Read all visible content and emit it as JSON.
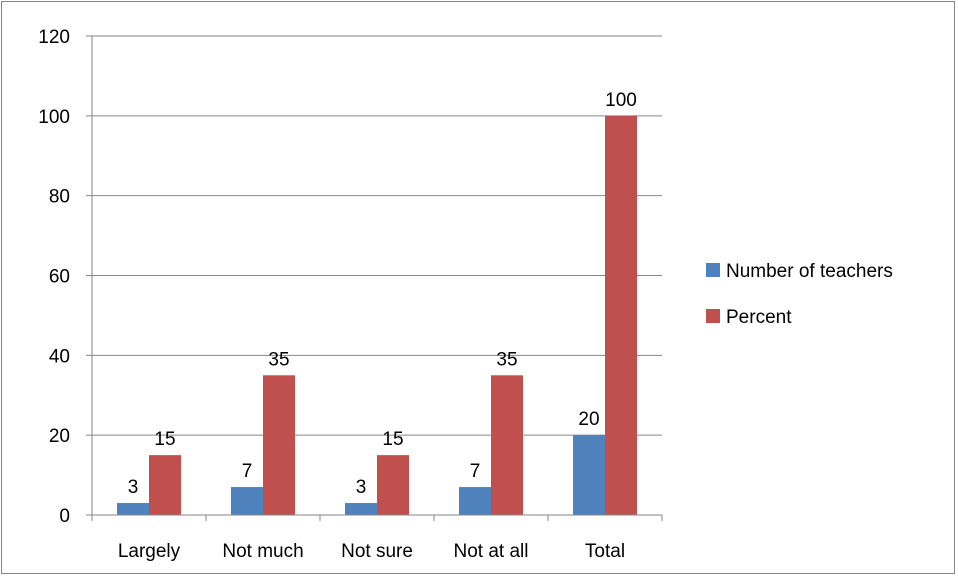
{
  "chart_data": {
    "type": "bar",
    "title": "",
    "xlabel": "",
    "ylabel": "",
    "categories": [
      "Largely",
      "Not much",
      "Not sure",
      "Not at all",
      "Total"
    ],
    "series": [
      {
        "name": "Number of teachers",
        "values": [
          3,
          7,
          3,
          7,
          20
        ],
        "color": "#4F81BD"
      },
      {
        "name": "Percent",
        "values": [
          15,
          35,
          15,
          35,
          100
        ],
        "color": "#C0504D"
      }
    ],
    "ylim": [
      0,
      120
    ],
    "yticks": [
      0,
      20,
      40,
      60,
      80,
      100,
      120
    ],
    "grid": true,
    "data_labels": true,
    "legend_position": "right",
    "axis_color": "#868686",
    "grid_color": "#868686"
  }
}
